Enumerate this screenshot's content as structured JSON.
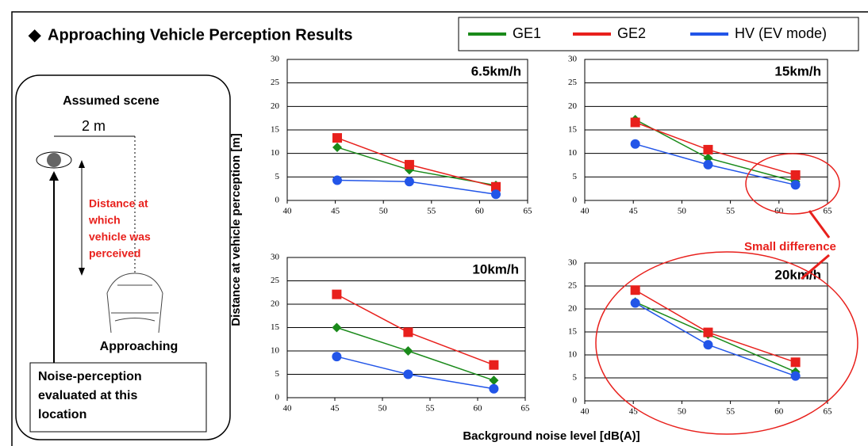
{
  "slide_title": "Approaching Vehicle Perception Results",
  "legend": {
    "series": [
      {
        "name": "GE1",
        "color": "#1a8a1a",
        "marker": "diamond"
      },
      {
        "name": "GE2",
        "color": "#e8201c",
        "marker": "square"
      },
      {
        "name": "HV (EV mode)",
        "color": "#2255e8",
        "marker": "circle"
      }
    ]
  },
  "scene": {
    "title": "Assumed scene",
    "width_label": "2 m",
    "distance_label": [
      "Distance at",
      "which",
      "vehicle was",
      "perceived"
    ],
    "vehicle_label": "Approaching",
    "location_label": [
      "Noise-perception",
      "evaluated at this",
      "location"
    ]
  },
  "annotation": "Small difference",
  "x_label": "Background noise level [dB(A)]",
  "y_label": "Distance at vehicle perception [m]",
  "chart_data": [
    {
      "type": "line",
      "title": "6.5km/h",
      "x": [
        45.2,
        52.7,
        61.7
      ],
      "xlim": [
        40,
        65
      ],
      "xticks": [
        40,
        45,
        50,
        55,
        60,
        65
      ],
      "ylim": [
        0,
        30
      ],
      "yticks": [
        0,
        5,
        10,
        15,
        20,
        25,
        30
      ],
      "grid": true,
      "series": [
        {
          "values": [
            11.3,
            6.5,
            3.2
          ]
        },
        {
          "values": [
            13.3,
            7.6,
            2.9
          ]
        },
        {
          "values": [
            4.3,
            4.0,
            1.3
          ]
        }
      ]
    },
    {
      "type": "line",
      "title": "15km/h",
      "x": [
        45.2,
        52.7,
        61.7
      ],
      "xlim": [
        40,
        65
      ],
      "xticks": [
        40,
        45,
        50,
        55,
        60,
        65
      ],
      "ylim": [
        0,
        30
      ],
      "yticks": [
        0,
        5,
        10,
        15,
        20,
        25,
        30
      ],
      "grid": true,
      "series": [
        {
          "values": [
            17.2,
            9.0,
            4.0
          ]
        },
        {
          "values": [
            16.6,
            10.8,
            5.4
          ]
        },
        {
          "values": [
            12.0,
            7.6,
            3.3
          ]
        }
      ]
    },
    {
      "type": "line",
      "title": "10km/h",
      "x": [
        45.2,
        52.7,
        61.7
      ],
      "xlim": [
        40,
        65
      ],
      "xticks": [
        40,
        45,
        50,
        55,
        60,
        65
      ],
      "ylim": [
        0,
        30
      ],
      "yticks": [
        0,
        5,
        10,
        15,
        20,
        25,
        30
      ],
      "grid": true,
      "series": [
        {
          "values": [
            15.0,
            10.0,
            3.7
          ]
        },
        {
          "values": [
            22.1,
            14.0,
            7.0
          ]
        },
        {
          "values": [
            8.8,
            5.0,
            1.9
          ]
        }
      ]
    },
    {
      "type": "line",
      "title": "20km/h",
      "x": [
        45.2,
        52.7,
        61.7
      ],
      "xlim": [
        40,
        65
      ],
      "xticks": [
        40,
        45,
        50,
        55,
        60,
        65
      ],
      "ylim": [
        0,
        30
      ],
      "yticks": [
        0,
        5,
        10,
        15,
        20,
        25,
        30
      ],
      "grid": true,
      "series": [
        {
          "values": [
            21.5,
            14.5,
            6.3
          ]
        },
        {
          "values": [
            24.1,
            14.9,
            8.4
          ]
        },
        {
          "values": [
            21.3,
            12.2,
            5.4
          ]
        }
      ]
    }
  ]
}
